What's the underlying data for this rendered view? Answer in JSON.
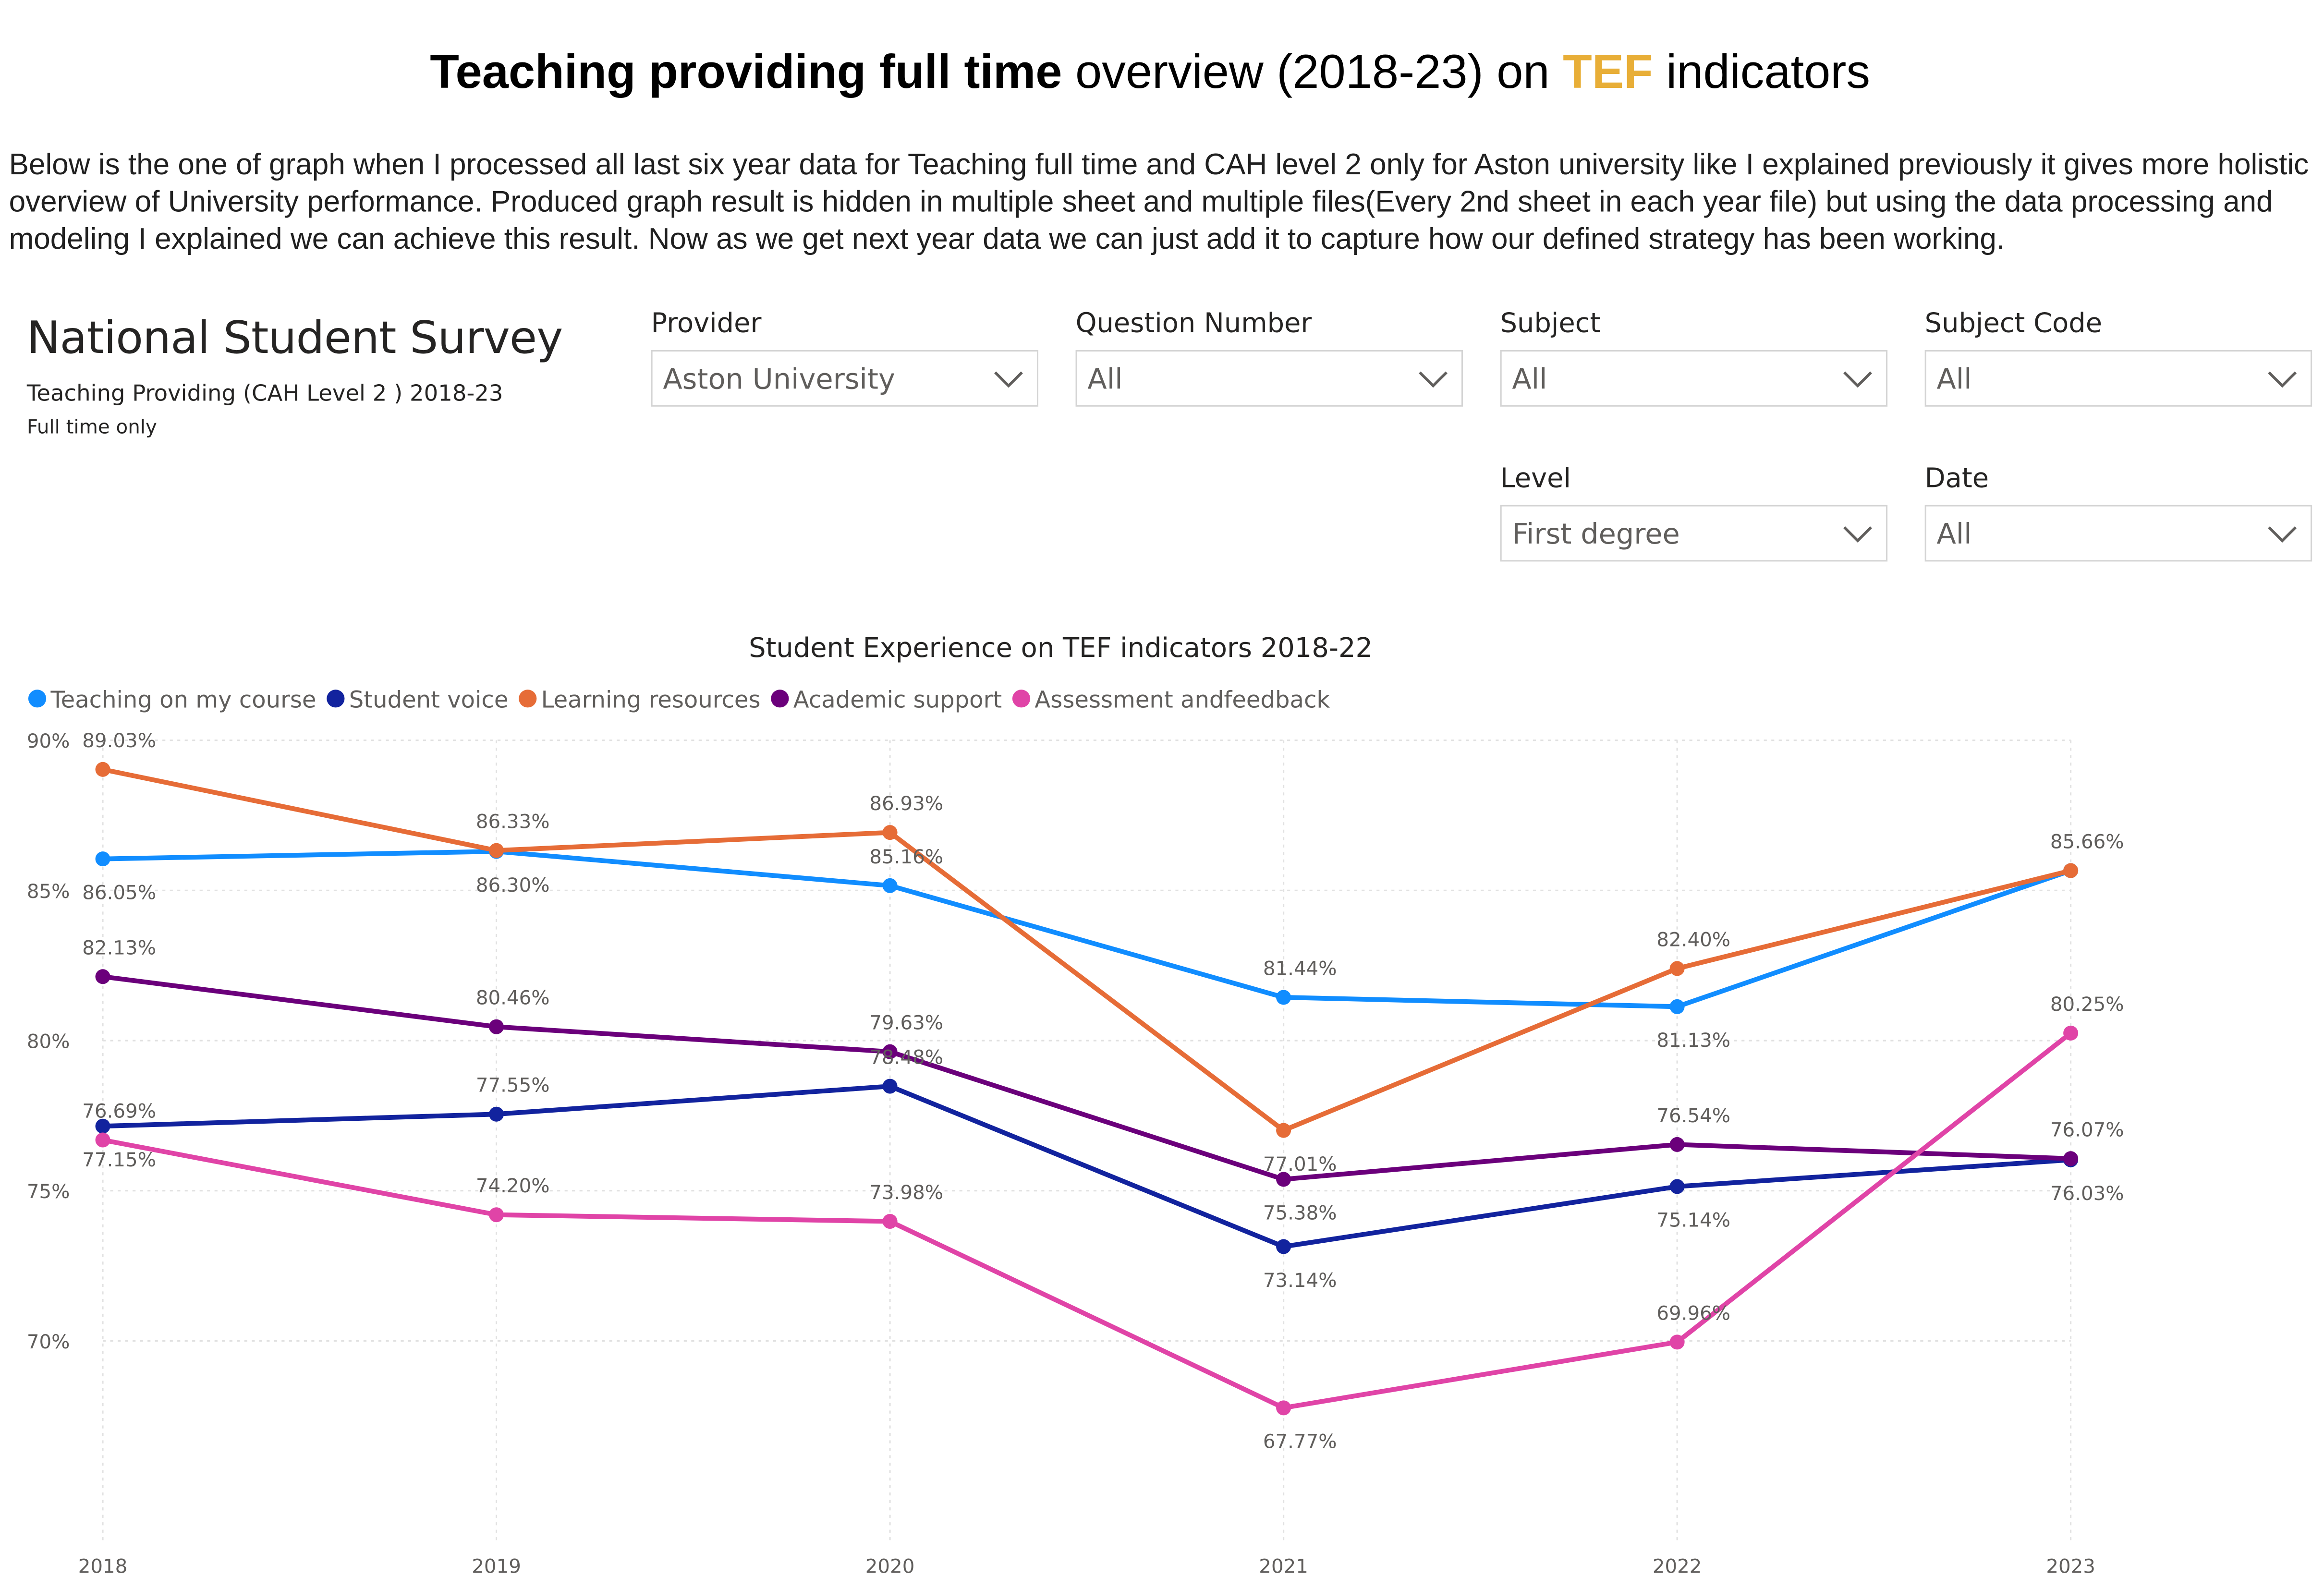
{
  "header": {
    "title_bold": "Teaching providing full time",
    "title_mid": " overview (2018-23) on ",
    "title_accent": "TEF",
    "title_end": " indicators",
    "accent_color": "#e8ae37"
  },
  "intro_text": "Below is the one of graph when I processed all last six year data for Teaching full time and CAH level 2 only for Aston university like I explained previously it gives more holistic overview of University performance. Produced graph result is hidden in multiple sheet and multiple files(Every 2nd sheet in each year file) but using the data processing and modeling I explained we can achieve this result. Now as we get next year data we can just add it to capture how our defined strategy has been working.",
  "report": {
    "title": "National Student Survey",
    "subtitle": "Teaching Providing (CAH Level 2 ) 2018-23",
    "note": "Full time only"
  },
  "slicers": {
    "provider": {
      "label": "Provider",
      "value": "Aston University"
    },
    "question_number": {
      "label": "Question Number",
      "value": "All"
    },
    "subject": {
      "label": "Subject",
      "value": "All"
    },
    "subject_code": {
      "label": "Subject Code",
      "value": "All"
    },
    "level": {
      "label": "Level",
      "value": "First degree"
    },
    "date": {
      "label": "Date",
      "value": "All"
    }
  },
  "chart_data": {
    "type": "line",
    "title": "Student Experience on TEF indicators 2018-22",
    "x": [
      "2018",
      "2019",
      "2020",
      "2021",
      "2022",
      "2023"
    ],
    "y_ticks": [
      "90%",
      "85%",
      "80%",
      "75%",
      "70%"
    ],
    "y_tick_values": [
      90,
      85,
      80,
      75,
      70
    ],
    "ylim": [
      65.2,
      90
    ],
    "grid": true,
    "legend_position": "top-left",
    "series": [
      {
        "name": "Teaching on my course",
        "color": "#118dff",
        "values": [
          86.05,
          86.3,
          85.16,
          81.44,
          81.13,
          85.66
        ],
        "labels": [
          "86.05%",
          "86.30%",
          "85.16%",
          "81.44%",
          "81.13%",
          ""
        ],
        "label_pos": [
          "below",
          "below",
          "above",
          "above",
          "below",
          "none"
        ]
      },
      {
        "name": "Student voice",
        "color": "#12239e",
        "values": [
          77.15,
          77.55,
          78.48,
          73.14,
          75.14,
          76.03
        ],
        "labels": [
          "77.15%",
          "77.55%",
          "78.48%",
          "73.14%",
          "75.14%",
          "76.03%"
        ],
        "label_pos": [
          "below",
          "above",
          "above",
          "below",
          "below",
          "below"
        ]
      },
      {
        "name": "Learning resources",
        "color": "#e66c37",
        "values": [
          89.03,
          86.33,
          86.93,
          77.01,
          82.4,
          85.66
        ],
        "labels": [
          "89.03%",
          "86.33%",
          "86.93%",
          "77.01%",
          "82.40%",
          "85.66%"
        ],
        "label_pos": [
          "above",
          "above",
          "above",
          "below",
          "above",
          "above"
        ]
      },
      {
        "name": "Academic support",
        "color": "#6b007b",
        "values": [
          82.13,
          80.46,
          79.63,
          75.38,
          76.54,
          76.07
        ],
        "labels": [
          "82.13%",
          "80.46%",
          "79.63%",
          "75.38%",
          "76.54%",
          "76.07%"
        ],
        "label_pos": [
          "above",
          "above",
          "above",
          "below",
          "above",
          "above"
        ]
      },
      {
        "name": "Assessment andfeedback",
        "color": "#e044a7",
        "values": [
          76.69,
          74.2,
          73.98,
          67.77,
          69.96,
          80.25
        ],
        "labels": [
          "76.69%",
          "74.20%",
          "73.98%",
          "67.77%",
          "69.96%",
          "80.25%"
        ],
        "label_pos": [
          "above",
          "above",
          "above",
          "below",
          "above",
          "above"
        ]
      }
    ]
  }
}
